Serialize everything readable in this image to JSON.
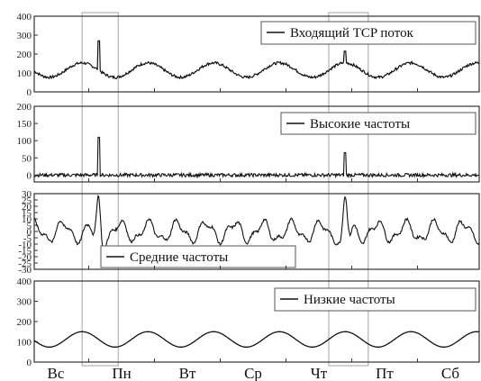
{
  "chart_data": [
    {
      "type": "line",
      "title": "",
      "series": [
        {
          "name": "Входящий TCP поток"
        }
      ],
      "ylim": [
        0,
        400
      ],
      "yticks": [
        0,
        100,
        200,
        300,
        400
      ],
      "baseline": 115,
      "amplitude": 38,
      "noise": 7,
      "spikes": [
        {
          "day": 0.65,
          "value": 270
        },
        {
          "day": 4.4,
          "value": 215
        }
      ],
      "legend_position": "top-right"
    },
    {
      "type": "line",
      "title": "",
      "series": [
        {
          "name": "Высокие частоты"
        }
      ],
      "ylim": [
        -20,
        200
      ],
      "yticks": [
        0,
        50,
        100,
        150,
        200
      ],
      "baseline": 0,
      "amplitude": 0,
      "noise": 5,
      "spikes": [
        {
          "day": 0.65,
          "value": 110
        },
        {
          "day": 4.4,
          "value": 65
        }
      ],
      "legend_position": "top-right"
    },
    {
      "type": "line",
      "title": "",
      "series": [
        {
          "name": "Средние частоты"
        }
      ],
      "ylim": [
        -30,
        30
      ],
      "yticks": [
        30,
        25,
        20,
        15,
        10,
        5,
        0,
        -5,
        -10,
        -15,
        -20,
        -25,
        -30
      ],
      "baseline": 0,
      "amplitude": 7,
      "noise": 1,
      "spikes": [
        {
          "day": 0.65,
          "value": 25
        },
        {
          "day": 4.4,
          "value": 22
        }
      ],
      "legend_position": "bottom-center"
    },
    {
      "type": "line",
      "title": "",
      "series": [
        {
          "name": "Низкие частоты"
        }
      ],
      "ylim": [
        0,
        400
      ],
      "yticks": [
        0,
        100,
        200,
        300,
        400
      ],
      "baseline": 112,
      "amplitude": 38,
      "noise": 0,
      "spikes": [],
      "legend_position": "top-right"
    }
  ],
  "x_axis": {
    "categories": [
      "Вс",
      "Пн",
      "Вт",
      "Ср",
      "Чт",
      "Пт",
      "Сб"
    ]
  },
  "highlight_bands_days": [
    [
      0.4,
      0.95
    ],
    [
      4.15,
      4.75
    ]
  ]
}
